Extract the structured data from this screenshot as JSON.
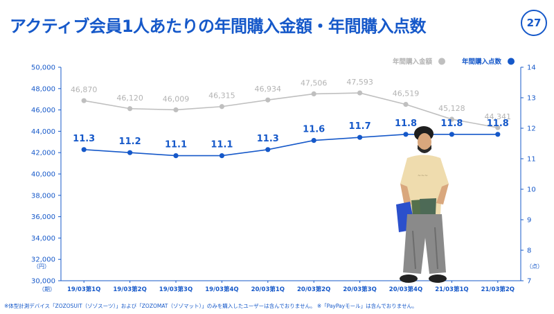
{
  "header": {
    "title": "アクティブ会員1人あたりの年間購入金額・年間購入点数",
    "page_number": "27"
  },
  "footnote": "※体型計測デバイス「ZOZOSUIT（ゾゾスーツ）」および「ZOZOMAT（ゾゾマット）」のみを購入したユーザーは含んでおりません。 ※「PayPayモール」は含んでおりません。",
  "chart_data": {
    "type": "line",
    "categories": [
      "19/03第1Q",
      "19/03第2Q",
      "19/03第3Q",
      "19/03第4Q",
      "20/03第1Q",
      "20/03第2Q",
      "20/03第3Q",
      "20/03第4Q",
      "21/03第1Q",
      "21/03第2Q"
    ],
    "x_axis_label": "（期）",
    "y_left": {
      "unit": "（円）",
      "min": 30000,
      "max": 50000,
      "ticks": [
        30000,
        32000,
        34000,
        36000,
        38000,
        40000,
        42000,
        44000,
        46000,
        48000,
        50000
      ],
      "tick_labels": [
        "30,000",
        "32,000",
        "34,000",
        "36,000",
        "38,000",
        "40,000",
        "42,000",
        "44,000",
        "46,000",
        "48,000",
        "50,000"
      ]
    },
    "y_right": {
      "unit": "（点）",
      "min": 7,
      "max": 14,
      "ticks": [
        7,
        8,
        9,
        10,
        11,
        12,
        13,
        14
      ],
      "tick_labels": [
        "7",
        "8",
        "9",
        "10",
        "11",
        "12",
        "13",
        "14"
      ]
    },
    "legend_position": "top-right",
    "series": [
      {
        "name": "年間購入金額",
        "axis": "left",
        "color": "#bfbfbf",
        "values": [
          46870,
          46120,
          46009,
          46315,
          46934,
          47506,
          47593,
          46519,
          45128,
          44341
        ],
        "labels": [
          "46,870",
          "46,120",
          "46,009",
          "46,315",
          "46,934",
          "47,506",
          "47,593",
          "46,519",
          "45,128",
          "44,341"
        ]
      },
      {
        "name": "年間購入点数",
        "axis": "right",
        "color": "#1558c9",
        "values": [
          11.3,
          11.2,
          11.1,
          11.1,
          11.3,
          11.6,
          11.7,
          11.8,
          11.8,
          11.8
        ],
        "labels": [
          "11.3",
          "11.2",
          "11.1",
          "11.1",
          "11.3",
          "11.6",
          "11.7",
          "11.8",
          "11.8",
          "11.8"
        ]
      }
    ]
  }
}
